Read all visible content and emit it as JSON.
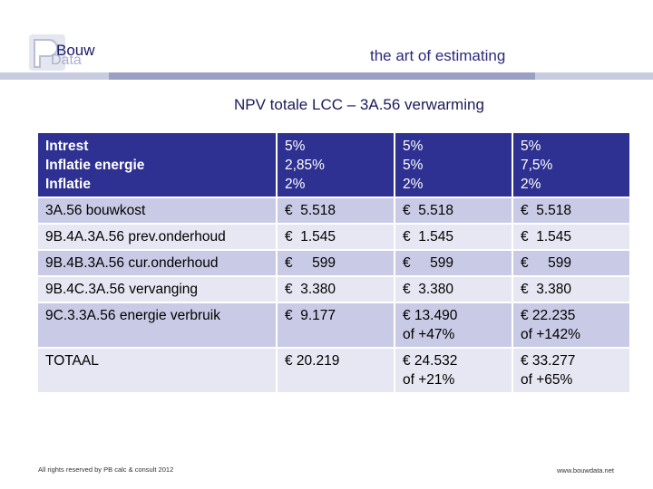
{
  "logo": {
    "line1": "Bouw",
    "line2": "Data"
  },
  "tagline": "the art of estimating",
  "subtitle": "NPV totale LCC – 3A.56 verwarming",
  "header": {
    "labels": [
      "Intrest",
      "Inflatie energie",
      "Inflatie"
    ],
    "scenarios": [
      [
        "5%",
        "2,85%",
        "2%"
      ],
      [
        "5%",
        "5%",
        "2%"
      ],
      [
        "5%",
        "7,5%",
        "2%"
      ]
    ]
  },
  "rows": [
    {
      "label": "3A.56 bouwkost",
      "values": [
        [
          "€  5.518"
        ],
        [
          "€  5.518"
        ],
        [
          "€  5.518"
        ]
      ]
    },
    {
      "label": "9B.4A.3A.56 prev.onderhoud",
      "values": [
        [
          "€  1.545"
        ],
        [
          "€  1.545"
        ],
        [
          "€  1.545"
        ]
      ]
    },
    {
      "label": "9B.4B.3A.56 cur.onderhoud",
      "values": [
        [
          "€     599"
        ],
        [
          "€     599"
        ],
        [
          "€     599"
        ]
      ]
    },
    {
      "label": "9B.4C.3A.56 vervanging",
      "values": [
        [
          "€  3.380"
        ],
        [
          "€  3.380"
        ],
        [
          "€  3.380"
        ]
      ]
    },
    {
      "label": "9C.3.3A.56 energie verbruik",
      "values": [
        [
          "€  9.177"
        ],
        [
          "€ 13.490",
          "of +47%"
        ],
        [
          "€ 22.235",
          "of +142%"
        ]
      ]
    },
    {
      "label": "TOTAAL",
      "values": [
        [
          "€ 20.219"
        ],
        [
          "€ 24.532",
          "of +21%"
        ],
        [
          "€ 33.277",
          "of +65%"
        ]
      ]
    }
  ],
  "footer": {
    "left": "All rights reserved by PB calc & consult 2012",
    "right": "www.bouwdata.net"
  },
  "colors": {
    "header_bg": "#2e3192",
    "row_odd": "#c9cbe6",
    "row_even": "#e6e7f3",
    "accent_text": "#2a2a7a"
  }
}
